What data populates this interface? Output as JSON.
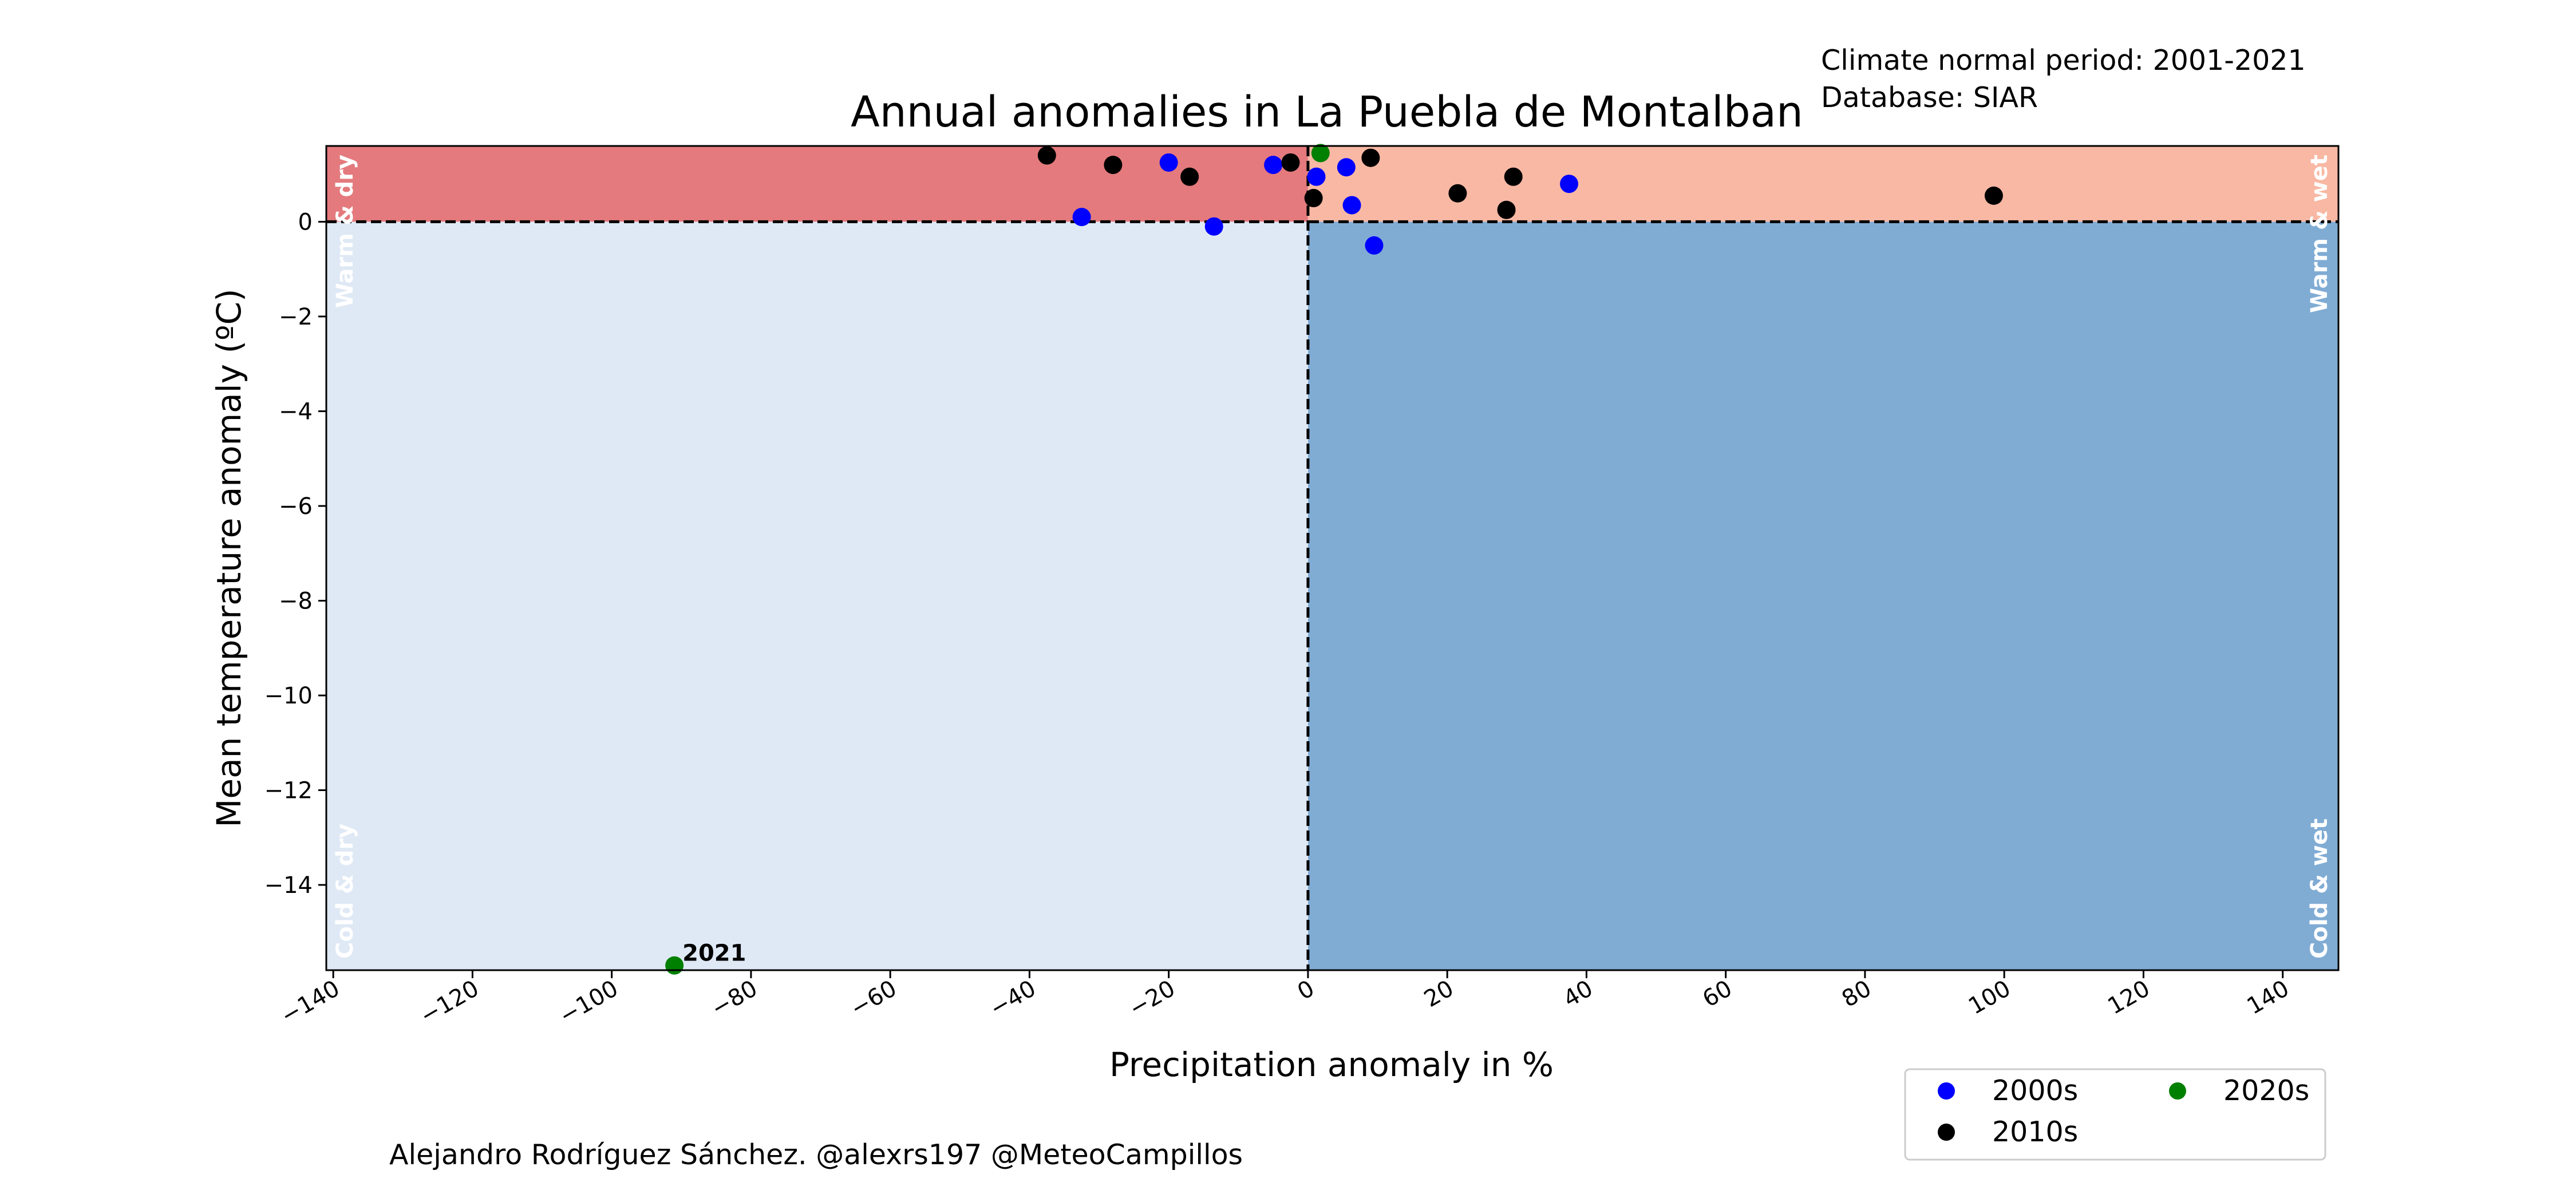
{
  "chart_data": {
    "type": "scatter",
    "title": "Annual anomalies in La Puebla de Montalban",
    "info_lines": [
      "Climate normal period: 2001-2021",
      "Database: SIAR"
    ],
    "xlabel": "Precipitation anomaly in %",
    "ylabel": "Mean temperature anomaly (ºC)",
    "xlim": [
      -141,
      148
    ],
    "ylim": [
      -15.8,
      1.6
    ],
    "x_ticks": [
      -140,
      -120,
      -100,
      -80,
      -60,
      -40,
      -20,
      0,
      20,
      40,
      60,
      80,
      100,
      120,
      140
    ],
    "x_tick_labels": [
      "−140",
      "−120",
      "−100",
      "−80",
      "−60",
      "−40",
      "−20",
      "0",
      "20",
      "40",
      "60",
      "80",
      "100",
      "120",
      "140"
    ],
    "y_ticks": [
      0,
      -2,
      -4,
      -6,
      -8,
      -10,
      -12,
      -14
    ],
    "y_tick_labels": [
      "0",
      "−2",
      "−4",
      "−6",
      "−8",
      "−10",
      "−12",
      "−14"
    ],
    "grid": false,
    "quadrants": {
      "warm_dry": {
        "label": "Warm & dry",
        "color": "#e47a7d"
      },
      "warm_wet": {
        "label": "Warm & wet",
        "color": "#f8b8a4"
      },
      "cold_dry": {
        "label": "Cold & dry",
        "color": "#dfe9f5"
      },
      "cold_wet": {
        "label": "Cold & wet",
        "color": "#80acd4"
      }
    },
    "reference_lines": {
      "x": 0,
      "y": 0,
      "style": "dashed"
    },
    "series": [
      {
        "name": "2000s",
        "color": "#0000ff",
        "points": [
          {
            "x": -32.5,
            "y": 0.1
          },
          {
            "x": -20,
            "y": 1.25
          },
          {
            "x": -13.5,
            "y": -0.1
          },
          {
            "x": -5,
            "y": 1.2
          },
          {
            "x": 1.2,
            "y": 0.95
          },
          {
            "x": 5.5,
            "y": 1.15
          },
          {
            "x": 6.3,
            "y": 0.35
          },
          {
            "x": 9.5,
            "y": -0.5
          },
          {
            "x": 37.5,
            "y": 0.8
          }
        ]
      },
      {
        "name": "2010s",
        "color": "#000000",
        "points": [
          {
            "x": -37.5,
            "y": 1.4
          },
          {
            "x": -28,
            "y": 1.2
          },
          {
            "x": -17,
            "y": 0.95
          },
          {
            "x": -2.5,
            "y": 1.25
          },
          {
            "x": 0.8,
            "y": 0.5
          },
          {
            "x": 9,
            "y": 1.35
          },
          {
            "x": 21.5,
            "y": 0.6
          },
          {
            "x": 28.5,
            "y": 0.25
          },
          {
            "x": 29.5,
            "y": 0.95
          },
          {
            "x": 98.5,
            "y": 0.55
          }
        ]
      },
      {
        "name": "2020s",
        "color": "#008000",
        "points": [
          {
            "x": 1.8,
            "y": 1.45
          },
          {
            "x": -91,
            "y": -15.7,
            "label": "2021"
          }
        ]
      }
    ],
    "legend": {
      "position": "bottom-right",
      "columns": 2
    }
  },
  "footer": {
    "credit": "Alejandro Rodríguez Sánchez. @alexrs197 @MeteoCampillos"
  }
}
